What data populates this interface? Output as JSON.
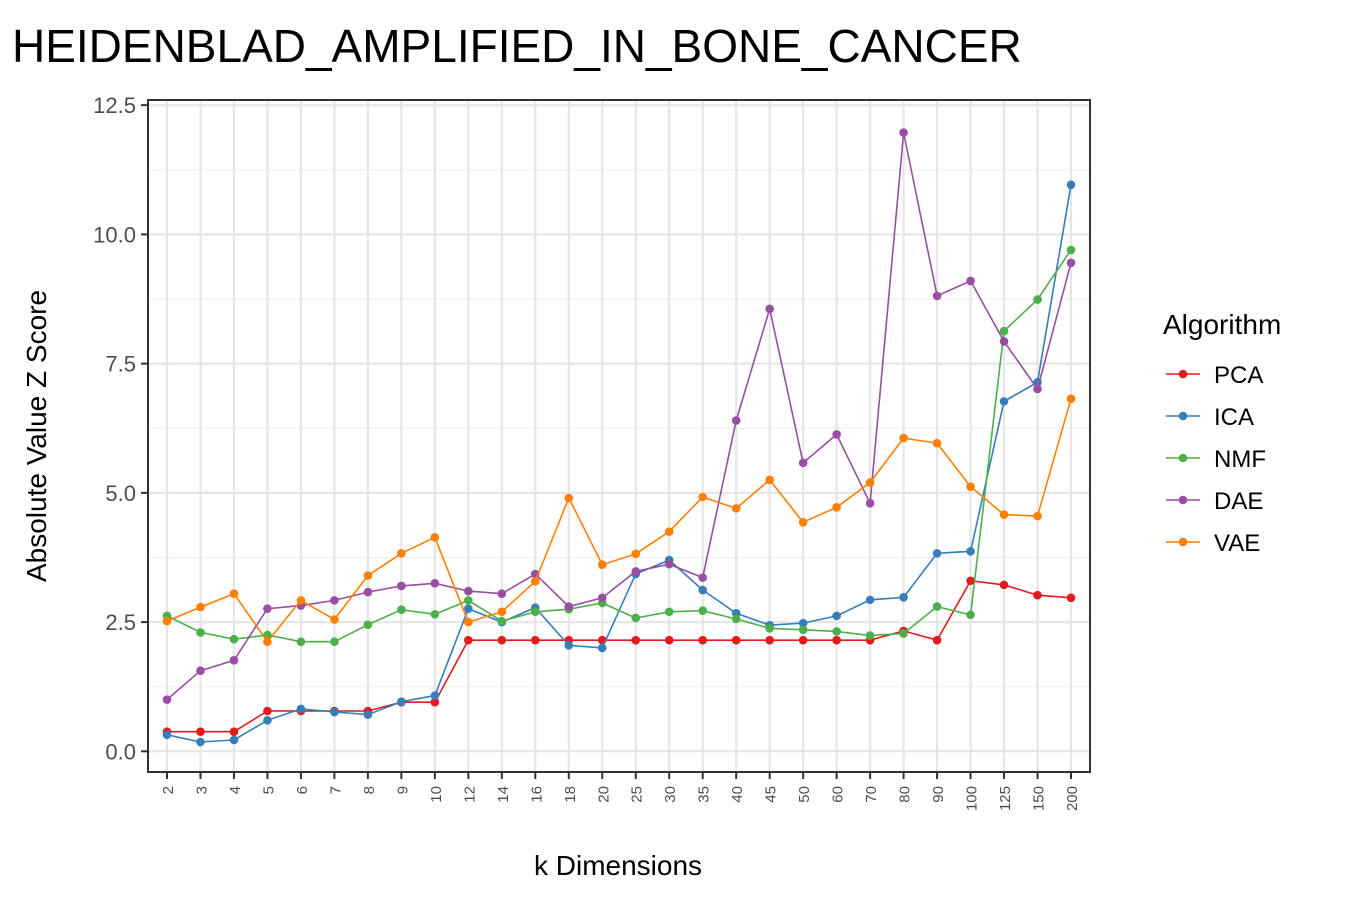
{
  "chart_data": {
    "type": "line",
    "title": "HEIDENBLAD_AMPLIFIED_IN_BONE_CANCER",
    "xlabel": "k Dimensions",
    "ylabel": "Absolute Value Z Score",
    "ylim": [
      0,
      12.5
    ],
    "yticks": [
      "0.0",
      "2.5",
      "5.0",
      "7.5",
      "10.0",
      "12.5"
    ],
    "categories": [
      "2",
      "3",
      "4",
      "5",
      "6",
      "7",
      "8",
      "9",
      "10",
      "12",
      "14",
      "16",
      "18",
      "20",
      "25",
      "30",
      "35",
      "40",
      "45",
      "50",
      "60",
      "70",
      "80",
      "90",
      "100",
      "125",
      "150",
      "200"
    ],
    "grid": true,
    "legend": {
      "title": "Algorithm",
      "position": "right"
    },
    "series": [
      {
        "name": "PCA",
        "color": "#E41A1C",
        "values": [
          0.38,
          0.38,
          0.38,
          0.78,
          0.78,
          0.78,
          0.78,
          0.95,
          0.95,
          2.15,
          2.15,
          2.15,
          2.15,
          2.15,
          2.15,
          2.15,
          2.15,
          2.15,
          2.15,
          2.15,
          2.15,
          2.15,
          2.33,
          2.15,
          3.3,
          3.22,
          3.02,
          2.97
        ]
      },
      {
        "name": "ICA",
        "color": "#377EB8",
        "values": [
          0.32,
          0.18,
          0.22,
          0.6,
          0.82,
          0.76,
          0.71,
          0.96,
          1.08,
          2.76,
          2.5,
          2.78,
          2.05,
          2.0,
          3.43,
          3.7,
          3.12,
          2.67,
          2.44,
          2.48,
          2.62,
          2.93,
          2.98,
          3.83,
          3.87,
          6.77,
          7.14,
          10.96
        ]
      },
      {
        "name": "NMF",
        "color": "#4DAF4A",
        "values": [
          2.62,
          2.3,
          2.17,
          2.25,
          2.12,
          2.12,
          2.45,
          2.74,
          2.65,
          2.92,
          2.52,
          2.7,
          2.75,
          2.87,
          2.58,
          2.7,
          2.72,
          2.56,
          2.38,
          2.35,
          2.32,
          2.24,
          2.28,
          2.8,
          2.64,
          8.13,
          8.74,
          9.7
        ]
      },
      {
        "name": "DAE",
        "color": "#984EA3",
        "values": [
          1.0,
          1.56,
          1.76,
          2.76,
          2.82,
          2.92,
          3.08,
          3.2,
          3.25,
          3.1,
          3.05,
          3.43,
          2.8,
          2.97,
          3.48,
          3.62,
          3.36,
          6.4,
          8.56,
          5.58,
          6.13,
          4.8,
          11.97,
          8.81,
          9.1,
          7.93,
          7.01,
          9.45
        ]
      },
      {
        "name": "VAE",
        "color": "#FF7F00",
        "values": [
          2.52,
          2.79,
          3.05,
          2.12,
          2.92,
          2.55,
          3.4,
          3.83,
          4.14,
          2.5,
          2.7,
          3.29,
          4.9,
          3.61,
          3.82,
          4.25,
          4.92,
          4.7,
          5.25,
          4.43,
          4.72,
          5.2,
          6.06,
          5.96,
          5.12,
          4.58,
          4.55,
          6.82
        ]
      }
    ]
  }
}
